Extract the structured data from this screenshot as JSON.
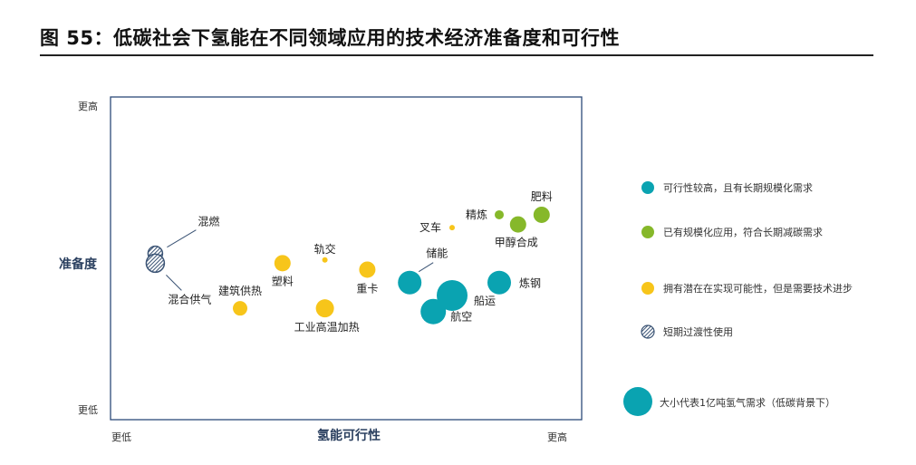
{
  "title": "图 55：低碳社会下氢能在不同领域应用的技术经济准备度和可行性",
  "chart_data": {
    "type": "bubble",
    "xlabel": "氢能可行性",
    "ylabel": "准备度",
    "x_ticks": {
      "low": "更低",
      "high": "更高"
    },
    "y_ticks": {
      "low": "更低",
      "high": "更高"
    },
    "xlim": [
      0,
      100
    ],
    "ylim": [
      0,
      100
    ],
    "categories": {
      "teal": {
        "label": "可行性较高，且有长期规模化需求",
        "color": "#0aa3b1"
      },
      "green": {
        "label": "已有规模化应用，符合长期减碳需求",
        "color": "#86b82a"
      },
      "yellow": {
        "label": "拥有潜在在实现可能性，但是需要技术进步",
        "color": "#f7c51a"
      },
      "hatch": {
        "label": "短期过渡性使用",
        "color": "#3b5475"
      }
    },
    "size_note": "大小代表1亿吨氢气需求（低碳背景下）",
    "points": [
      {
        "name": "肥料",
        "category": "green",
        "x": 91.5,
        "y": 63.5,
        "size": 9
      },
      {
        "name": "精炼",
        "category": "green",
        "x": 82.5,
        "y": 63.5,
        "size": 5
      },
      {
        "name": "甲醇合成",
        "category": "green",
        "x": 86.5,
        "y": 60.5,
        "size": 9
      },
      {
        "name": "叉车",
        "category": "yellow",
        "x": 72.5,
        "y": 59.5,
        "size": 3
      },
      {
        "name": "混燃",
        "category": "hatch",
        "x": 9.5,
        "y": 51.5,
        "size": 8
      },
      {
        "name": "混合供气",
        "category": "hatch",
        "x": 9.5,
        "y": 48.5,
        "size": 10
      },
      {
        "name": "塑料",
        "category": "yellow",
        "x": 36.5,
        "y": 48.5,
        "size": 9
      },
      {
        "name": "轨交",
        "category": "yellow",
        "x": 45.5,
        "y": 49.5,
        "size": 3
      },
      {
        "name": "重卡",
        "category": "yellow",
        "x": 54.5,
        "y": 46.5,
        "size": 9
      },
      {
        "name": "储能",
        "category": "teal",
        "x": 63.5,
        "y": 42.5,
        "size": 13
      },
      {
        "name": "炼钢",
        "category": "teal",
        "x": 82.5,
        "y": 42.5,
        "size": 13
      },
      {
        "name": "船运",
        "category": "teal",
        "x": 72.5,
        "y": 38.5,
        "size": 17
      },
      {
        "name": "航空",
        "category": "teal",
        "x": 68.5,
        "y": 33.5,
        "size": 14
      },
      {
        "name": "建筑供热",
        "category": "yellow",
        "x": 27.5,
        "y": 34.5,
        "size": 8
      },
      {
        "name": "工业高温加热",
        "category": "yellow",
        "x": 45.5,
        "y": 34.5,
        "size": 10
      }
    ]
  }
}
